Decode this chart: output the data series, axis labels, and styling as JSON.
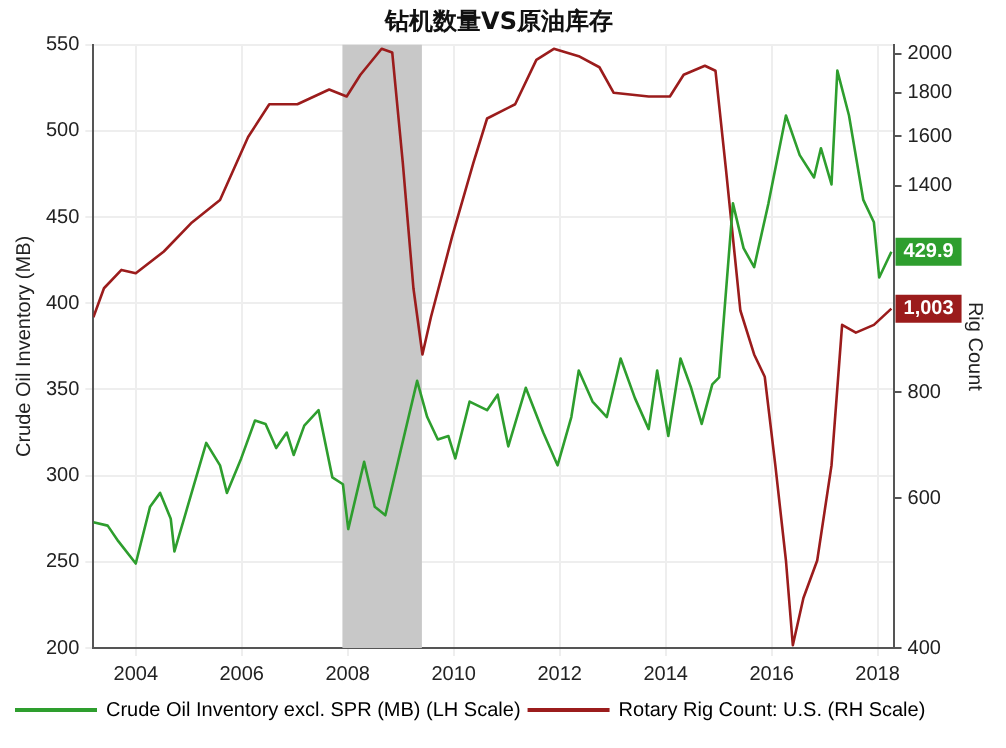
{
  "chart_data": {
    "type": "line",
    "title": "钻机数量VS原油库存",
    "ylabel": "Crude Oil Inventory (MB)",
    "y2label": "Rig Count",
    "xlim": [
      2003.2,
      2018.3
    ],
    "xticks": [
      2004,
      2006,
      2008,
      2010,
      2012,
      2014,
      2016,
      2018
    ],
    "ylim": [
      200,
      550
    ],
    "yticks": [
      200,
      250,
      300,
      350,
      400,
      450,
      500,
      550
    ],
    "y2lim": [
      400,
      2050
    ],
    "y2ticks": [
      400,
      600,
      800,
      1400,
      1600,
      1800,
      2000
    ],
    "log": "y2",
    "grid": true,
    "legend": "bottom",
    "marker": "none",
    "line_style": "solid",
    "bands": [
      {
        "axis": "x",
        "from": 2007.9,
        "to": 2009.4,
        "color": "#c8c8c8"
      }
    ],
    "series": [
      {
        "name": "Crude Oil Inventory excl. SPR (MB) (LH Scale)",
        "color": "#2e9e2e",
        "axis": "y",
        "x": [
          2003.2,
          2003.47,
          2003.67,
          2004.0,
          2004.27,
          2004.46,
          2004.66,
          2004.73,
          2004.93,
          2005.33,
          2005.59,
          2005.72,
          2005.99,
          2006.25,
          2006.45,
          2006.65,
          2006.85,
          2006.98,
          2007.18,
          2007.45,
          2007.71,
          2007.91,
          2008.01,
          2008.31,
          2008.51,
          2008.71,
          2008.91,
          2009.31,
          2009.5,
          2009.7,
          2009.9,
          2010.03,
          2010.3,
          2010.63,
          2010.83,
          2011.03,
          2011.36,
          2011.69,
          2011.96,
          2012.22,
          2012.36,
          2012.62,
          2012.89,
          2013.15,
          2013.42,
          2013.68,
          2013.84,
          2014.05,
          2014.28,
          2014.48,
          2014.68,
          2014.88,
          2015.01,
          2015.27,
          2015.47,
          2015.67,
          2015.94,
          2016.27,
          2016.53,
          2016.8,
          2016.93,
          2017.13,
          2017.24,
          2017.46,
          2017.73,
          2017.93,
          2018.03,
          2018.26
        ],
        "values": [
          273,
          271,
          262,
          249,
          282,
          290,
          275,
          256,
          277,
          319,
          306,
          290,
          310,
          332,
          330,
          316,
          325,
          312,
          329,
          338,
          299,
          295,
          269,
          308,
          282,
          277,
          303,
          355,
          334,
          321,
          323,
          310,
          343,
          338,
          347,
          317,
          351,
          325,
          306,
          334,
          361,
          343,
          334,
          368,
          345,
          327,
          361,
          323,
          368,
          351,
          330,
          353,
          357,
          458,
          432,
          421,
          458,
          509,
          486,
          473,
          490,
          469,
          535,
          509,
          460,
          447,
          415,
          429.9
        ],
        "value_labels": [
          null,
          null,
          null,
          null,
          null,
          null,
          null,
          null,
          null,
          null,
          null,
          null,
          null,
          null,
          null,
          null,
          null,
          null,
          null,
          null,
          null,
          null,
          null,
          null,
          null,
          null,
          null,
          null,
          null,
          null,
          null,
          null,
          null,
          null,
          null,
          null,
          null,
          null,
          null,
          null,
          null,
          null,
          null,
          null,
          null,
          null,
          null,
          null,
          null,
          null,
          null,
          null,
          null,
          null,
          null,
          null,
          null,
          null,
          null,
          null,
          null,
          null,
          null,
          null,
          null,
          null,
          null,
          "429.9"
        ]
      },
      {
        "name": "Rotary Rig Count: U.S. (RH Scale)",
        "color": "#9b1c1c",
        "axis": "y2",
        "x": [
          2003.2,
          2003.4,
          2003.73,
          2004.0,
          2004.53,
          2005.06,
          2005.59,
          2006.12,
          2006.52,
          2007.05,
          2007.65,
          2007.98,
          2008.24,
          2008.64,
          2008.84,
          2009.04,
          2009.24,
          2009.41,
          2009.57,
          2009.97,
          2010.37,
          2010.63,
          2011.16,
          2011.56,
          2011.89,
          2012.36,
          2012.75,
          2013.02,
          2013.68,
          2014.08,
          2014.34,
          2014.74,
          2014.94,
          2015.14,
          2015.41,
          2015.67,
          2015.87,
          2016.07,
          2016.27,
          2016.4,
          2016.6,
          2016.86,
          2017.13,
          2017.33,
          2017.59,
          2017.93,
          2018.26
        ],
        "values": [
          980,
          1060,
          1114,
          1104,
          1171,
          1267,
          1346,
          1597,
          1745,
          1745,
          1816,
          1782,
          1890,
          2028,
          2008,
          1488,
          1060,
          886,
          980,
          1219,
          1488,
          1679,
          1745,
          1968,
          2028,
          1988,
          1929,
          1800,
          1782,
          1782,
          1890,
          1937,
          1911,
          1459,
          998,
          886,
          834,
          656,
          507,
          403,
          458,
          507,
          656,
          960,
          940,
          960,
          1003
        ],
        "value_labels": [
          null,
          null,
          null,
          null,
          null,
          null,
          null,
          null,
          null,
          null,
          null,
          null,
          null,
          null,
          null,
          null,
          null,
          null,
          null,
          null,
          null,
          null,
          null,
          null,
          null,
          null,
          null,
          null,
          null,
          null,
          null,
          null,
          null,
          null,
          null,
          null,
          null,
          null,
          null,
          null,
          null,
          null,
          null,
          null,
          null,
          null,
          "1,003"
        ]
      }
    ]
  }
}
